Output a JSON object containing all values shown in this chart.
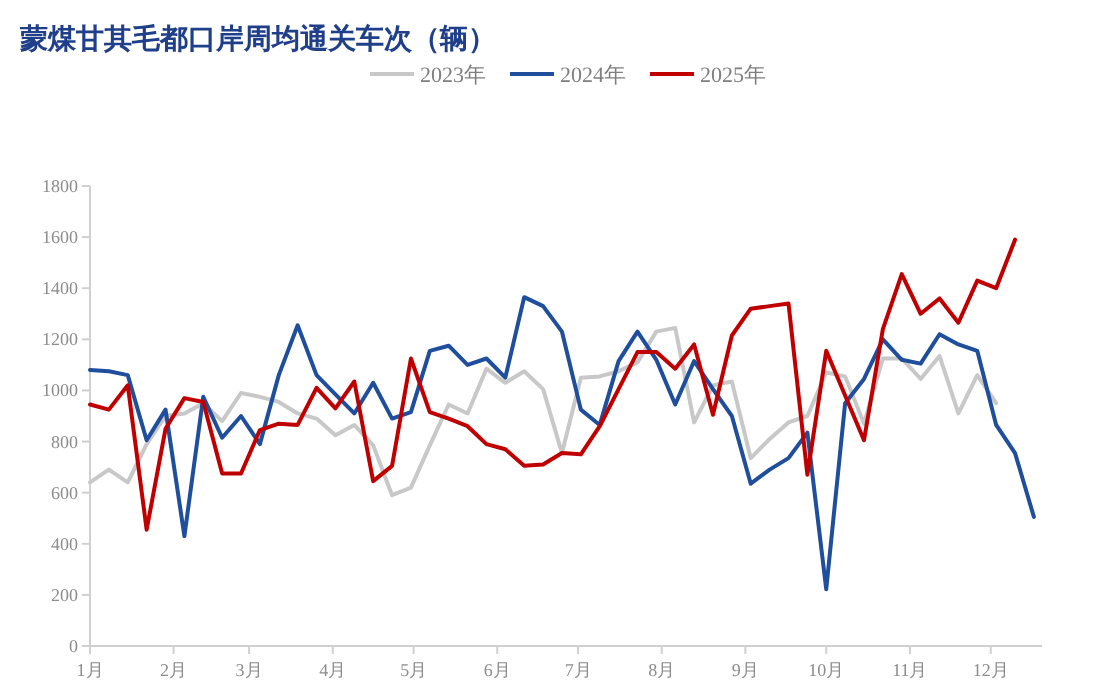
{
  "chart_data": {
    "type": "line",
    "title": "蒙煤甘其毛都口岸周均通关车次（辆）",
    "xlim": [
      "--01-01",
      "--12-20"
    ],
    "xticks": [
      {
        "value": "--01-01",
        "label": "1月"
      },
      {
        "value": "--02-01",
        "label": "2月"
      },
      {
        "value": "--03-01",
        "label": "3月"
      },
      {
        "value": "--04-01",
        "label": "4月"
      },
      {
        "value": "--05-01",
        "label": "5月"
      },
      {
        "value": "--06-01",
        "label": "6月"
      },
      {
        "value": "--07-01",
        "label": "7月"
      },
      {
        "value": "--08-01",
        "label": "8月"
      },
      {
        "value": "--09-01",
        "label": "9月"
      },
      {
        "value": "--10-01",
        "label": "10月"
      },
      {
        "value": "--11-01",
        "label": "11月"
      },
      {
        "value": "--12-01",
        "label": "12月"
      }
    ],
    "ylim": [
      0,
      1800
    ],
    "yticks": [
      0,
      200,
      400,
      600,
      800,
      1000,
      1200,
      1400,
      1600,
      1800
    ],
    "grid": false,
    "legend": "top",
    "marker": "none",
    "series": [
      {
        "name": "2023年",
        "color": "#c8c8c8",
        "x": [
          "--01-01",
          "--01-08",
          "--01-15",
          "--01-22",
          "--01-29",
          "--02-05",
          "--02-12",
          "--02-19",
          "--02-26",
          "--03-05",
          "--03-12",
          "--03-19",
          "--03-26",
          "--04-02",
          "--04-09",
          "--04-16",
          "--04-23",
          "--04-30",
          "--05-07",
          "--05-14",
          "--05-21",
          "--05-28",
          "--06-04",
          "--06-11",
          "--06-18",
          "--06-25",
          "--07-02",
          "--07-09",
          "--07-16",
          "--07-23",
          "--07-30",
          "--08-06",
          "--08-13",
          "--08-20",
          "--08-27",
          "--09-03",
          "--09-10",
          "--09-17",
          "--09-24",
          "--10-01",
          "--10-08",
          "--10-15",
          "--10-22",
          "--10-29",
          "--11-05",
          "--11-12",
          "--11-19",
          "--11-26",
          "--12-03"
        ],
        "values": [
          640,
          690,
          640,
          790,
          900,
          910,
          950,
          880,
          990,
          975,
          955,
          910,
          890,
          825,
          865,
          785,
          590,
          620,
          785,
          945,
          910,
          1085,
          1030,
          1075,
          1005,
          755,
          1050,
          1055,
          1075,
          1110,
          1230,
          1245,
          875,
          1020,
          1035,
          735,
          810,
          875,
          900,
          1070,
          1055,
          870,
          1125,
          1125,
          1045,
          1135,
          910,
          1060,
          950
        ]
      },
      {
        "name": "2024年",
        "color": "#1f4e9c",
        "x": [
          "--01-01",
          "--01-08",
          "--01-15",
          "--01-22",
          "--01-29",
          "--02-05",
          "--02-12",
          "--02-19",
          "--02-26",
          "--03-05",
          "--03-12",
          "--03-19",
          "--03-26",
          "--04-02",
          "--04-09",
          "--04-16",
          "--04-23",
          "--04-30",
          "--05-07",
          "--05-14",
          "--05-21",
          "--05-28",
          "--06-04",
          "--06-11",
          "--06-18",
          "--06-25",
          "--07-02",
          "--07-09",
          "--07-16",
          "--07-23",
          "--07-30",
          "--08-06",
          "--08-13",
          "--08-20",
          "--08-27",
          "--09-03",
          "--09-10",
          "--09-17",
          "--09-24",
          "--10-01",
          "--10-08",
          "--10-15",
          "--10-22",
          "--10-29",
          "--11-05",
          "--11-12",
          "--11-19",
          "--11-26",
          "--12-03",
          "--12-10",
          "--12-17"
        ],
        "values": [
          1080,
          1075,
          1060,
          805,
          925,
          430,
          975,
          815,
          900,
          790,
          1060,
          1255,
          1060,
          985,
          910,
          1030,
          890,
          915,
          1155,
          1175,
          1100,
          1125,
          1050,
          1365,
          1330,
          1230,
          925,
          865,
          1115,
          1230,
          1120,
          945,
          1115,
          1005,
          900,
          635,
          690,
          735,
          835,
          222,
          950,
          1045,
          1200,
          1120,
          1105,
          1220,
          1180,
          1155,
          865,
          755,
          505
        ]
      },
      {
        "name": "2025年",
        "color": "#c00000",
        "x": [
          "--01-01",
          "--01-08",
          "--01-15",
          "--01-22",
          "--01-29",
          "--02-05",
          "--02-12",
          "--02-19",
          "--02-26",
          "--03-05",
          "--03-12",
          "--03-19",
          "--03-26",
          "--04-02",
          "--04-09",
          "--04-16",
          "--04-23",
          "--04-30",
          "--05-07",
          "--05-14",
          "--05-21",
          "--05-28",
          "--06-04",
          "--06-11",
          "--06-18",
          "--06-25",
          "--07-02",
          "--07-09",
          "--07-16",
          "--07-23",
          "--07-30",
          "--08-06",
          "--08-13",
          "--08-20",
          "--08-27",
          "--09-03",
          "--09-10",
          "--09-17",
          "--09-24",
          "--10-01",
          "--10-08",
          "--10-15",
          "--10-22",
          "--10-29",
          "--11-05",
          "--11-12",
          "--11-19",
          "--11-26",
          "--12-03",
          "--12-10"
        ],
        "values": [
          945,
          925,
          1020,
          455,
          850,
          970,
          955,
          675,
          675,
          845,
          870,
          865,
          1010,
          930,
          1035,
          645,
          705,
          1125,
          915,
          890,
          860,
          790,
          770,
          705,
          710,
          755,
          750,
          860,
          1005,
          1150,
          1150,
          1085,
          1180,
          905,
          1215,
          1320,
          1330,
          1340,
          670,
          1155,
          980,
          805,
          1240,
          1455,
          1300,
          1360,
          1265,
          1430,
          1400,
          1590
        ]
      }
    ]
  }
}
